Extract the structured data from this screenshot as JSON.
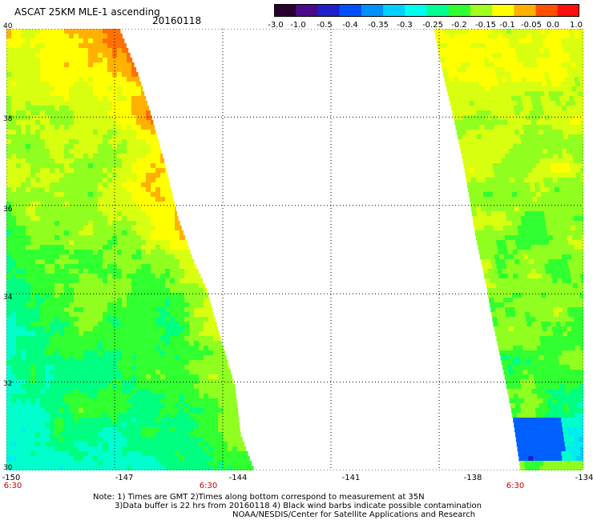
{
  "header": {
    "title": "ASCAT 25KM MLE-1 ascending",
    "date": "20160118"
  },
  "colorbar": {
    "labels": [
      "-3.0",
      "-1.0",
      "-0.5",
      "-0.4",
      "-0.35",
      "-0.3",
      "-0.25",
      "-0.2",
      "-0.15",
      "-0.1",
      "-0.05",
      "0.0",
      "1.0"
    ],
    "colors": [
      "#2a0030",
      "#4a0a8a",
      "#2020c8",
      "#0050ff",
      "#0090ff",
      "#00d0ff",
      "#00ffee",
      "#00ff90",
      "#30ff30",
      "#a0ff20",
      "#ffff00",
      "#ffb000",
      "#ff5000",
      "#ff1010"
    ]
  },
  "map": {
    "lon_min": -150,
    "lon_max": -134,
    "lat_min": 30,
    "lat_max": 40,
    "x_ticks": [
      "-150",
      "-147",
      "-144",
      "-141",
      "-138",
      "-134"
    ],
    "y_ticks": [
      "30",
      "32",
      "34",
      "36",
      "38",
      "40"
    ],
    "time_labels": [
      "6:30",
      "6:30",
      "6:30"
    ],
    "grid": true
  },
  "notes": {
    "line1": "Note: 1) Times are GMT 2)Times along bottom correspond to measurement at 35N",
    "line2": "3)Data buffer is 22 hrs from 20160118 4) Black wind barbs indicate possible contamination",
    "line3": "NOAA/NESDIS/Center for Satellite Applications and Research"
  }
}
